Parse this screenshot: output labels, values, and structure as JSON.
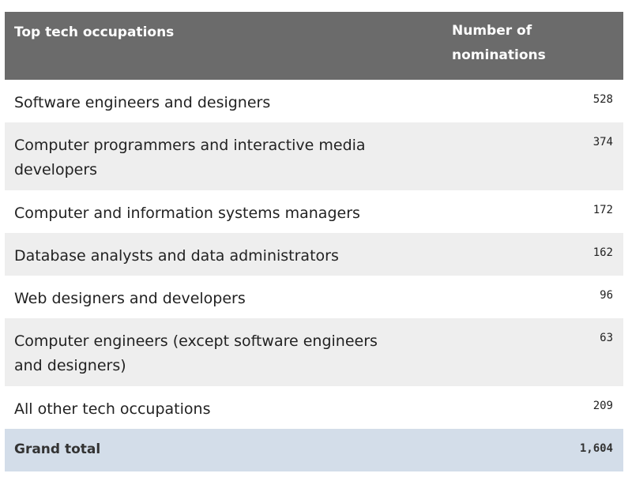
{
  "chart_data": {
    "type": "table",
    "columns": [
      "Top tech occupations",
      "Number of nominations"
    ],
    "rows": [
      {
        "occupation": "Software engineers and designers",
        "nominations": "528"
      },
      {
        "occupation": "Computer programmers and interactive media developers",
        "nominations": "374"
      },
      {
        "occupation": "Computer and information systems managers",
        "nominations": "172"
      },
      {
        "occupation": "Database analysts and data administrators",
        "nominations": "162"
      },
      {
        "occupation": "Web designers and developers",
        "nominations": "96"
      },
      {
        "occupation": "Computer engineers (except software engineers and designers)",
        "nominations": "63"
      },
      {
        "occupation": "All other tech occupations",
        "nominations": "209"
      }
    ],
    "total": {
      "label": "Grand total",
      "value": "1,604"
    }
  },
  "colors": {
    "header_bg": "#6b6b6b",
    "alt_row_bg": "#eeeeee",
    "total_row_bg": "#d3dde9"
  }
}
